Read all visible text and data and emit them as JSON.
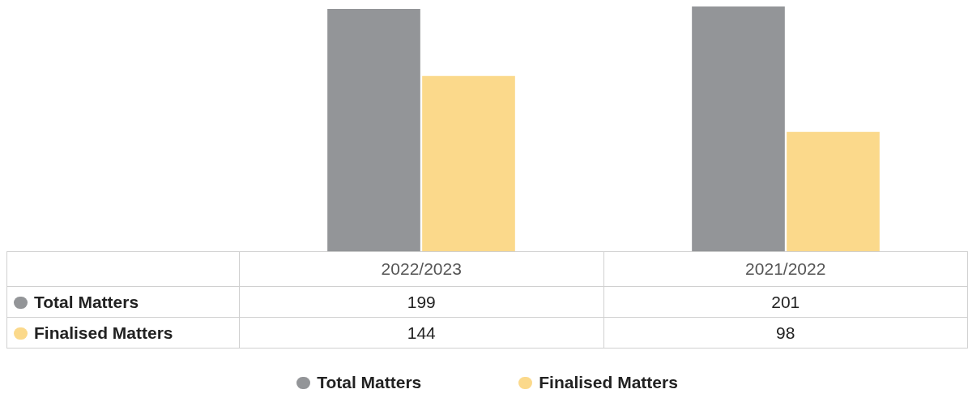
{
  "chart_data": {
    "type": "bar",
    "categories": [
      "2022/2023",
      "2021/2022"
    ],
    "series": [
      {
        "name": "Total Matters",
        "color": "#939598",
        "values": [
          199,
          201
        ]
      },
      {
        "name": "Finalised Matters",
        "color": "#fbd98b",
        "values": [
          144,
          98
        ]
      }
    ],
    "data_labels": true,
    "legend": "bottom"
  }
}
